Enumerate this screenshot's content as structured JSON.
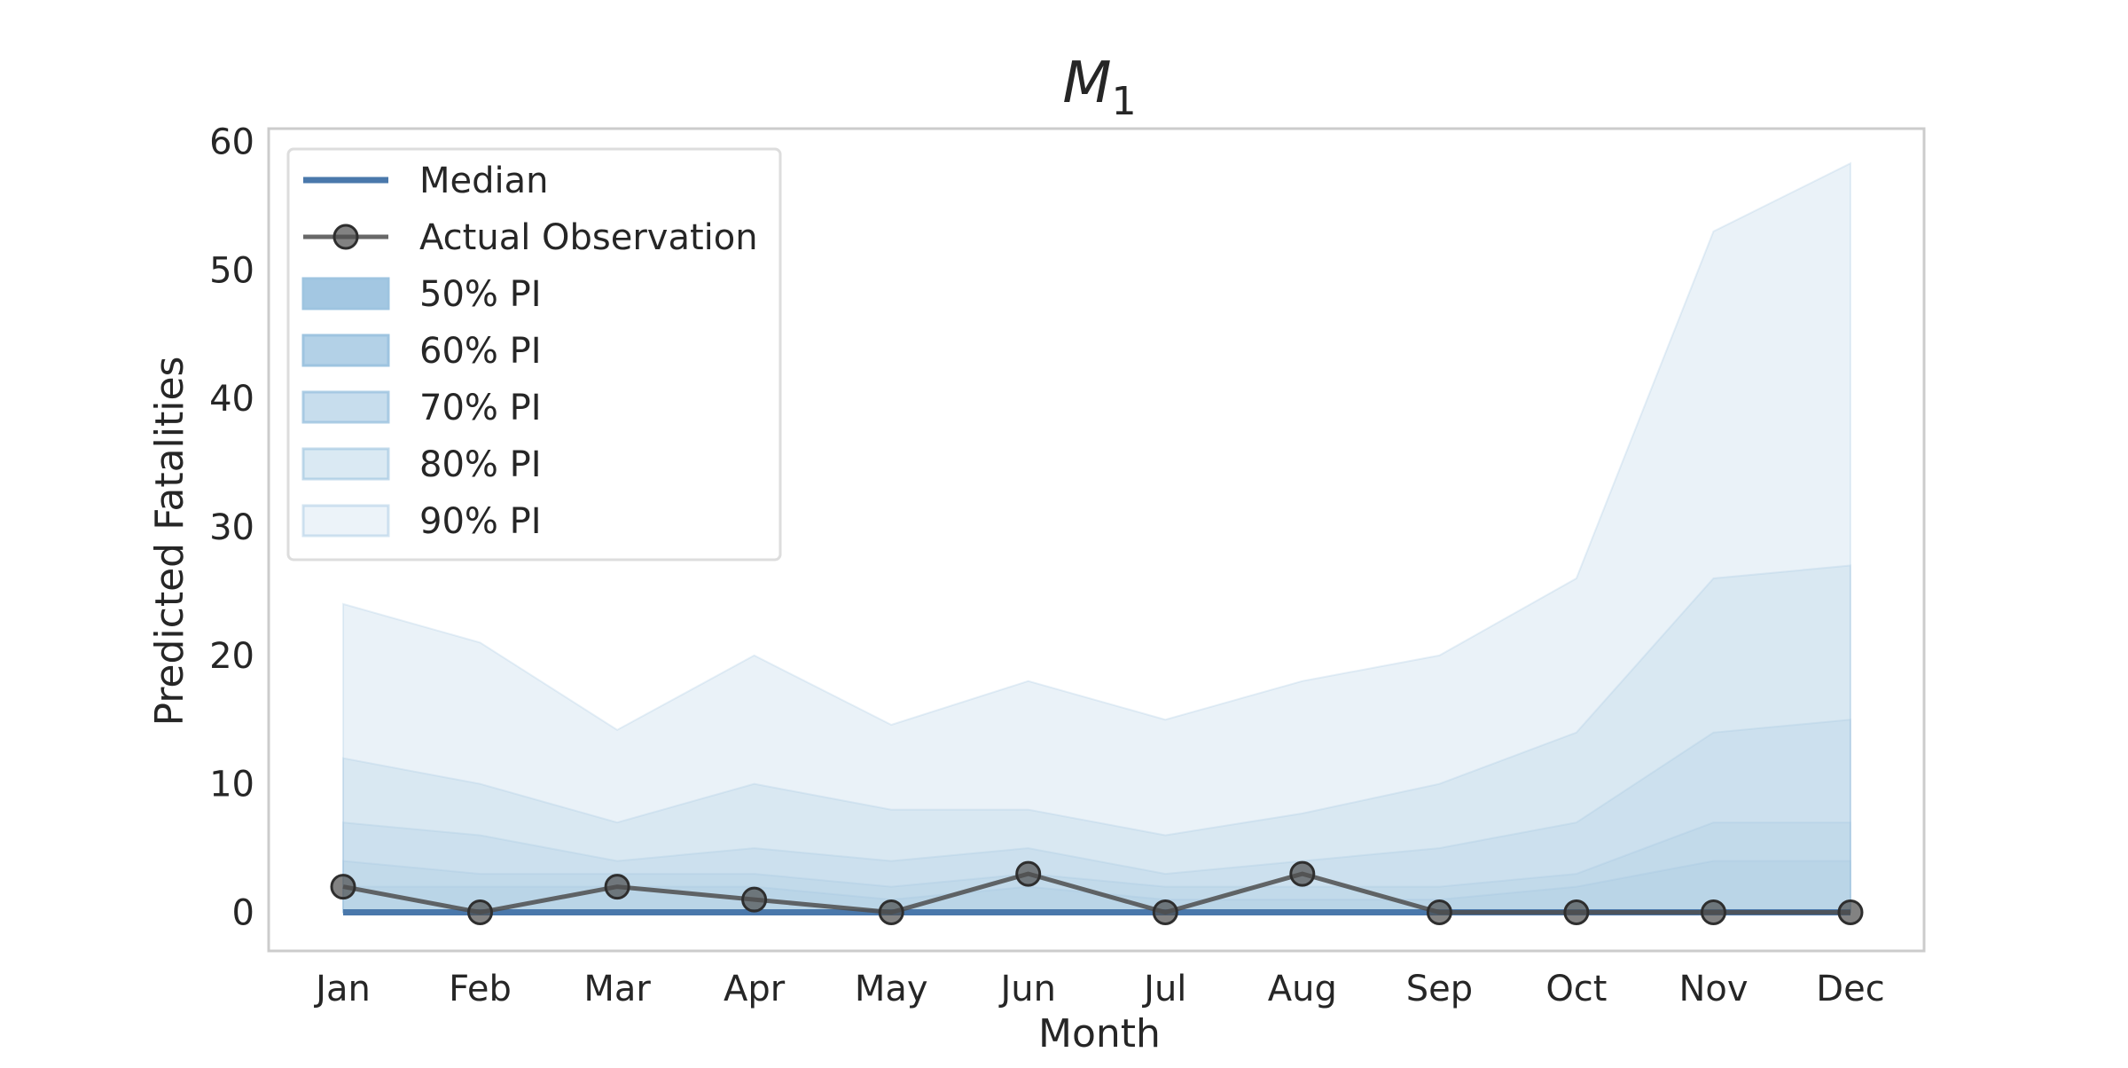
{
  "chart_data": {
    "type": "area",
    "title": "M",
    "title_subscript": "1",
    "xlabel": "Month",
    "ylabel": "Predicted Fatalities",
    "categories": [
      "Jan",
      "Feb",
      "Mar",
      "Apr",
      "May",
      "Jun",
      "Jul",
      "Aug",
      "Sep",
      "Oct",
      "Nov",
      "Dec"
    ],
    "ylim": [
      -3,
      61
    ],
    "yticks": [
      0,
      10,
      20,
      30,
      40,
      50,
      60
    ],
    "grid": false,
    "legend_position": "top-left",
    "colors": {
      "median": "#4a78ab",
      "observation": "#4d4d4d",
      "band": "#9ec4e0",
      "axes_edge": "#cccccc",
      "legend_edge": "#dddddd"
    },
    "median": {
      "name": "Median",
      "values": [
        0,
        0,
        0,
        0,
        0,
        0,
        0,
        0,
        0,
        0,
        0,
        0
      ]
    },
    "observation": {
      "name": "Actual Observation",
      "values": [
        2,
        0,
        2,
        1,
        0,
        3,
        0,
        3,
        0,
        0,
        0,
        0
      ]
    },
    "intervals": [
      {
        "name": "90% PI",
        "lower": [
          0,
          0,
          0,
          0,
          0,
          0,
          0,
          0,
          0,
          0,
          0,
          0
        ],
        "upper": [
          24,
          21,
          14.2,
          20,
          14.6,
          18,
          15,
          18,
          20,
          26,
          53,
          58.3
        ],
        "opacity": 0.22
      },
      {
        "name": "80% PI",
        "lower": [
          0,
          0,
          0,
          0,
          0,
          0,
          0,
          0,
          0,
          0,
          0,
          0
        ],
        "upper": [
          12,
          10,
          7,
          10,
          8,
          8,
          6,
          7.7,
          10,
          14,
          26,
          27
        ],
        "opacity": 0.22
      },
      {
        "name": "70% PI",
        "lower": [
          0,
          0,
          0,
          0,
          0,
          0,
          0,
          0,
          0,
          0,
          0,
          0
        ],
        "upper": [
          7,
          6,
          4,
          5,
          4,
          5,
          3,
          4,
          5,
          7,
          14,
          15
        ],
        "opacity": 0.22
      },
      {
        "name": "60% PI",
        "lower": [
          0,
          0,
          0,
          0,
          0,
          0,
          0,
          0,
          0,
          0,
          0,
          0
        ],
        "upper": [
          4,
          3,
          3,
          3,
          2,
          3,
          2,
          2,
          2,
          3,
          7,
          7
        ],
        "opacity": 0.22
      },
      {
        "name": "50% PI",
        "lower": [
          0,
          0,
          0,
          0,
          0,
          0,
          0,
          0,
          0,
          0,
          0,
          0
        ],
        "upper": [
          2,
          2,
          2,
          2,
          1,
          2,
          1,
          1,
          1,
          2,
          4,
          4
        ],
        "opacity": 0.22
      }
    ],
    "legend": [
      "Median",
      "Actual Observation",
      "50% PI",
      "60% PI",
      "70% PI",
      "80% PI",
      "90% PI"
    ]
  }
}
